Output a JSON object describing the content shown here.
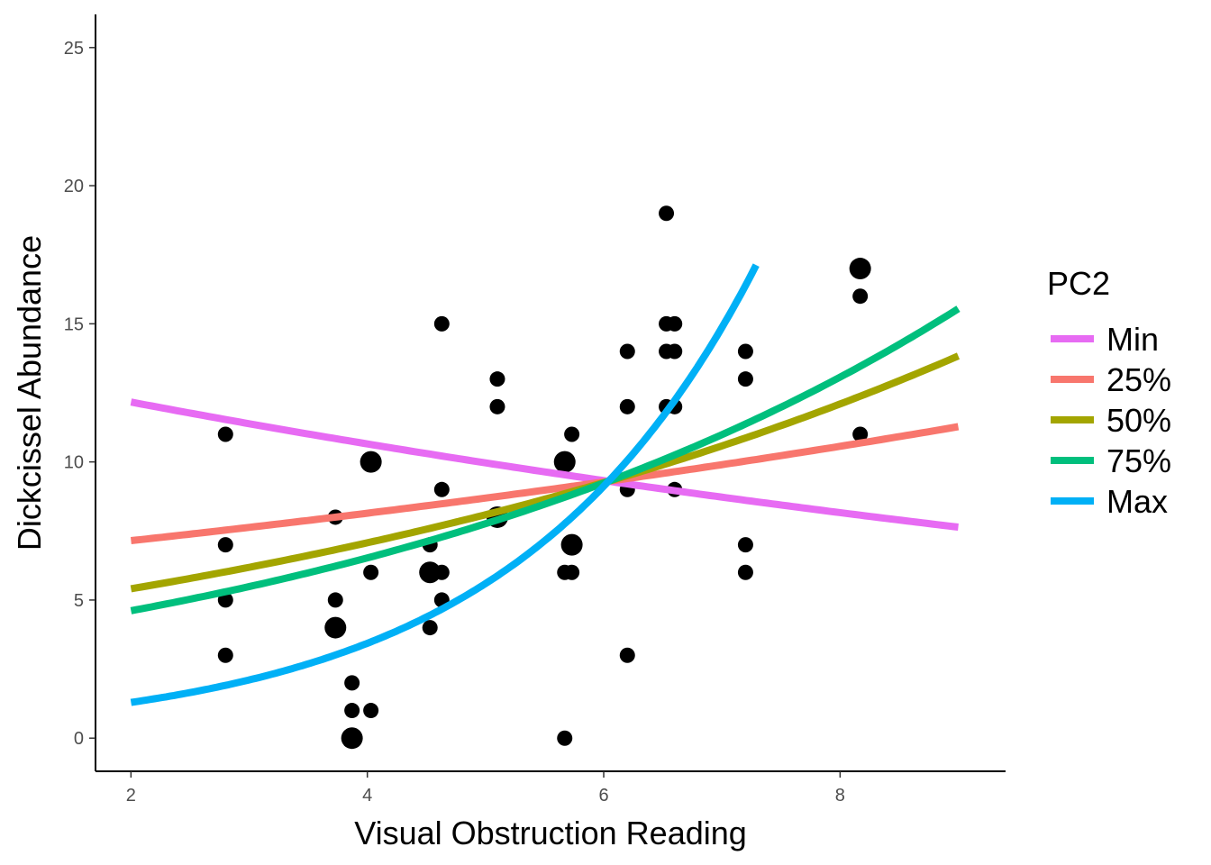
{
  "chart_data": {
    "type": "scatter",
    "xlabel": "Visual Obstruction Reading",
    "ylabel": "Dickcissel Abundance",
    "xlim": [
      1.7,
      9.4
    ],
    "ylim": [
      -1.2,
      26.2
    ],
    "xticks": [
      2,
      4,
      6,
      8
    ],
    "yticks": [
      0,
      5,
      10,
      15,
      20,
      25
    ],
    "x_tick_labels": [
      "2",
      "4",
      "6",
      "8"
    ],
    "y_tick_labels": [
      "0",
      "5",
      "10",
      "15",
      "20",
      "25"
    ],
    "grid": false,
    "legend": {
      "title": "PC2",
      "position": "right"
    },
    "points": [
      {
        "x": 2.8,
        "y": 11,
        "n": 1
      },
      {
        "x": 2.8,
        "y": 7,
        "n": 1
      },
      {
        "x": 2.8,
        "y": 5,
        "n": 1
      },
      {
        "x": 2.8,
        "y": 3,
        "n": 1
      },
      {
        "x": 3.73,
        "y": 8,
        "n": 1
      },
      {
        "x": 3.73,
        "y": 5,
        "n": 1
      },
      {
        "x": 3.73,
        "y": 4,
        "n": 2
      },
      {
        "x": 3.87,
        "y": 2,
        "n": 1
      },
      {
        "x": 3.87,
        "y": 1,
        "n": 1
      },
      {
        "x": 3.87,
        "y": 0,
        "n": 2
      },
      {
        "x": 4.03,
        "y": 10,
        "n": 2
      },
      {
        "x": 4.03,
        "y": 6,
        "n": 1
      },
      {
        "x": 4.03,
        "y": 1,
        "n": 1
      },
      {
        "x": 4.53,
        "y": 7,
        "n": 1
      },
      {
        "x": 4.53,
        "y": 6,
        "n": 2
      },
      {
        "x": 4.53,
        "y": 4,
        "n": 1
      },
      {
        "x": 4.63,
        "y": 15,
        "n": 1
      },
      {
        "x": 4.63,
        "y": 9,
        "n": 1
      },
      {
        "x": 4.63,
        "y": 6,
        "n": 1
      },
      {
        "x": 4.63,
        "y": 5,
        "n": 1
      },
      {
        "x": 5.1,
        "y": 13,
        "n": 1
      },
      {
        "x": 5.1,
        "y": 12,
        "n": 1
      },
      {
        "x": 5.1,
        "y": 8,
        "n": 2
      },
      {
        "x": 5.67,
        "y": 10,
        "n": 2
      },
      {
        "x": 5.67,
        "y": 6,
        "n": 1
      },
      {
        "x": 5.67,
        "y": 0,
        "n": 1
      },
      {
        "x": 5.73,
        "y": 11,
        "n": 1
      },
      {
        "x": 5.73,
        "y": 7,
        "n": 2
      },
      {
        "x": 5.73,
        "y": 6,
        "n": 1
      },
      {
        "x": 6.2,
        "y": 14,
        "n": 1
      },
      {
        "x": 6.2,
        "y": 12,
        "n": 1
      },
      {
        "x": 6.2,
        "y": 9,
        "n": 1
      },
      {
        "x": 6.2,
        "y": 3,
        "n": 1
      },
      {
        "x": 6.53,
        "y": 19,
        "n": 1
      },
      {
        "x": 6.53,
        "y": 15,
        "n": 1
      },
      {
        "x": 6.53,
        "y": 14,
        "n": 1
      },
      {
        "x": 6.53,
        "y": 12,
        "n": 1
      },
      {
        "x": 6.6,
        "y": 15,
        "n": 1
      },
      {
        "x": 6.6,
        "y": 14,
        "n": 1
      },
      {
        "x": 6.6,
        "y": 12,
        "n": 1
      },
      {
        "x": 6.6,
        "y": 9,
        "n": 1
      },
      {
        "x": 7.2,
        "y": 14,
        "n": 1
      },
      {
        "x": 7.2,
        "y": 13,
        "n": 1
      },
      {
        "x": 7.2,
        "y": 7,
        "n": 1
      },
      {
        "x": 7.2,
        "y": 6,
        "n": 1
      },
      {
        "x": 8.17,
        "y": 17,
        "n": 2
      },
      {
        "x": 8.17,
        "y": 16,
        "n": 1
      },
      {
        "x": 8.17,
        "y": 11,
        "n": 1
      }
    ],
    "series": [
      {
        "name": "Min",
        "color": "#E76BF3",
        "a": 9.3,
        "b": -0.0665,
        "x_start": 2,
        "x_end": 9
      },
      {
        "name": "25%",
        "color": "#F8766D",
        "a": 9.3,
        "b": 0.0651,
        "x_start": 2,
        "x_end": 9
      },
      {
        "name": "50%",
        "color": "#A3A500",
        "a": 9.3,
        "b": 0.1342,
        "x_start": 2,
        "x_end": 9
      },
      {
        "name": "75%",
        "color": "#00BF7D",
        "a": 9.3,
        "b": 0.1736,
        "x_start": 2,
        "x_end": 9
      },
      {
        "name": "Max",
        "color": "#00B0F6",
        "a": 9.3,
        "b": 0.4884,
        "x_start": 2,
        "x_end": 7.29
      }
    ]
  }
}
